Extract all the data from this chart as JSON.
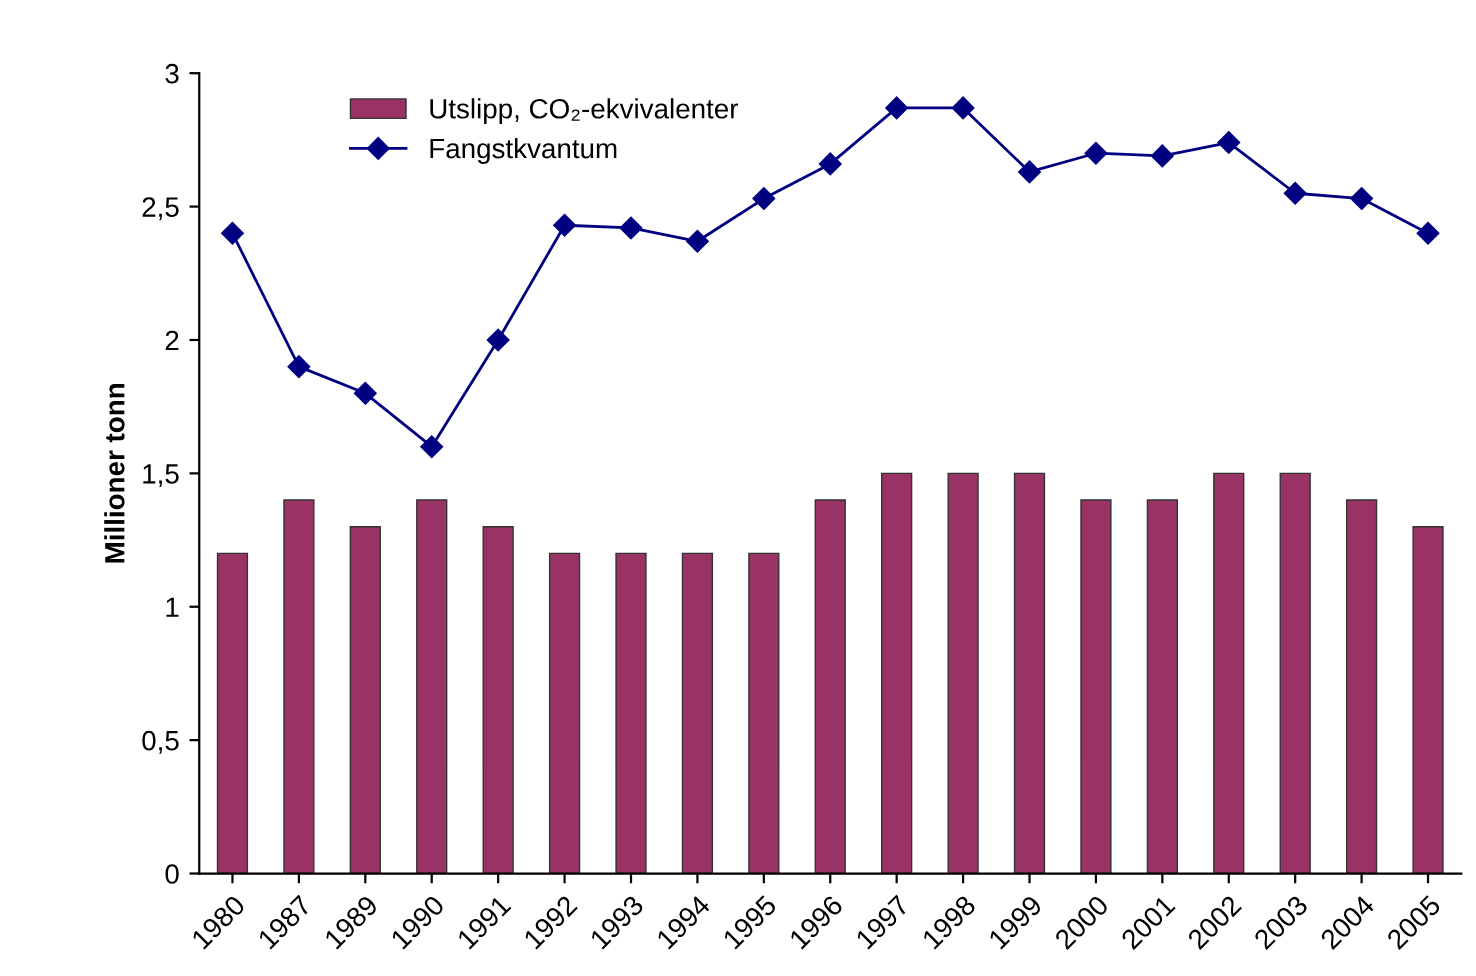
{
  "chart_data": {
    "type": "bar",
    "ylabel": "Millioner tonn",
    "categories": [
      "1980",
      "1987",
      "1989",
      "1990",
      "1991",
      "1992",
      "1993",
      "1994",
      "1995",
      "1996",
      "1997",
      "1998",
      "1999",
      "2000",
      "2001",
      "2002",
      "2003",
      "2004",
      "2005"
    ],
    "series": [
      {
        "name": "Utslipp, CO₂-ekvivalenter",
        "color": "#993366",
        "values": [
          1.2,
          1.4,
          1.3,
          1.4,
          1.3,
          1.2,
          1.2,
          1.2,
          1.2,
          1.4,
          1.5,
          1.5,
          1.5,
          1.4,
          1.4,
          1.5,
          1.5,
          1.4,
          1.3
        ]
      },
      {
        "name": "Fangstkvantum",
        "type": "line",
        "color": "#000080",
        "marker": "diamond",
        "line_style": "solid",
        "values": [
          2.4,
          1.9,
          1.8,
          1.6,
          2.0,
          2.43,
          2.42,
          2.37,
          2.53,
          2.66,
          2.87,
          2.87,
          2.63,
          2.7,
          2.69,
          2.74,
          2.55,
          2.53,
          2.4
        ]
      }
    ],
    "ylim": [
      0,
      3
    ],
    "yticks": [
      0,
      {
        "value": 0.5,
        "label": "0,5"
      },
      1,
      {
        "value": 1.5,
        "label": "1,5"
      },
      2,
      {
        "value": 2.5,
        "label": "2,5"
      },
      3
    ],
    "grid": false,
    "legend": "top left"
  }
}
